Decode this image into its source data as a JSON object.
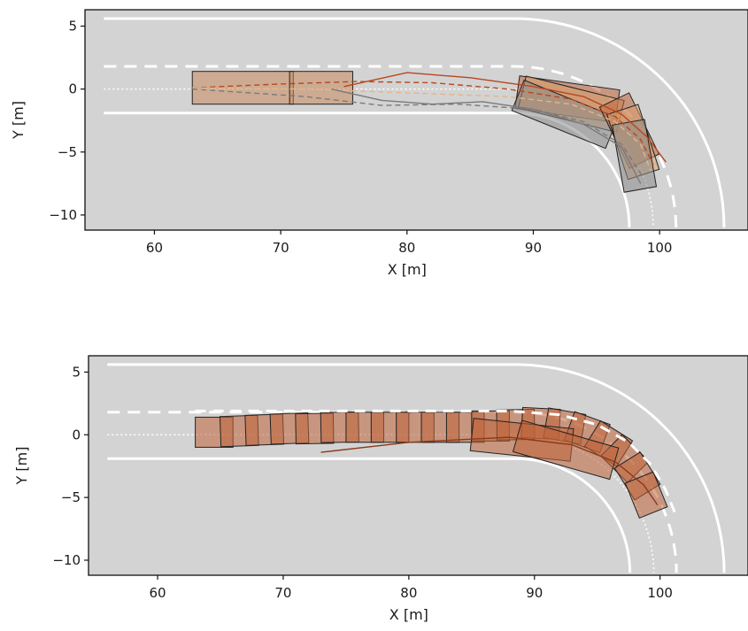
{
  "chart_data": [
    {
      "type": "scatter",
      "xlabel": "X [m]",
      "ylabel": "Y [m]",
      "xlim": [
        54.5,
        107
      ],
      "ylim": [
        -11.2,
        6.3
      ],
      "xticks": [
        60,
        70,
        80,
        90,
        100
      ],
      "yticks": [
        5,
        0,
        -5,
        -10
      ],
      "xtick_labels": [
        "60",
        "70",
        "80",
        "90",
        "100"
      ],
      "ytick_labels": [
        "5",
        "0",
        "−5",
        "−10"
      ],
      "background": "#d3d3d3",
      "grid": false,
      "road": {
        "straight_start_x": 56,
        "turn_start_x": 88.5,
        "turn_center": [
          88.5,
          -11
        ],
        "end_y": -11,
        "outer_edge_y": 5.6,
        "left_lane_dashed_y": 1.8,
        "centerline_dotted_y": 0.0,
        "inner_edge_y": -1.9,
        "colors": {
          "edge": "#ffffff",
          "dashed": "#ffffff",
          "dotted": "#ffffff"
        }
      },
      "vehicle_states": [
        {
          "x": 67,
          "y": 0.1,
          "heading_deg": 0,
          "length": 8,
          "width": 2.6,
          "color": "#c98a5c"
        },
        {
          "x": 73.2,
          "y": 0.1,
          "heading_deg": 0,
          "length": 5,
          "width": 2.6,
          "color": "#c98a5c"
        },
        {
          "x": 92.7,
          "y": -0.8,
          "heading_deg": -8,
          "length": 8,
          "width": 2.6,
          "color": "#c0653a"
        },
        {
          "x": 93.0,
          "y": -1.2,
          "heading_deg": -14,
          "length": 8,
          "width": 2.6,
          "color": "#d9a26e"
        },
        {
          "x": 92.5,
          "y": -2.0,
          "heading_deg": -22,
          "length": 8,
          "width": 2.6,
          "color": "#8a8a8a"
        },
        {
          "x": 97.6,
          "y": -3.3,
          "heading_deg": -64,
          "length": 5.4,
          "width": 2.6,
          "color": "#c0653a"
        },
        {
          "x": 97.9,
          "y": -4.2,
          "heading_deg": -72,
          "length": 5.4,
          "width": 2.6,
          "color": "#d9a26e"
        },
        {
          "x": 98.0,
          "y": -5.3,
          "heading_deg": -80,
          "length": 5.4,
          "width": 2.6,
          "color": "#8a8a8a"
        }
      ],
      "trajectories": [
        {
          "style": "dashed",
          "color": "#b8471e",
          "x": [
            63,
            70,
            76,
            82,
            88,
            93,
            96.5,
            98.5,
            99.5
          ],
          "y": [
            0.1,
            0.4,
            0.6,
            0.5,
            0.0,
            -0.8,
            -2.2,
            -4.0,
            -6.0
          ]
        },
        {
          "style": "solid",
          "color": "#b8471e",
          "x": [
            75,
            80,
            85,
            90,
            94,
            97,
            99,
            100.5
          ],
          "y": [
            0.2,
            1.3,
            0.9,
            0.2,
            -0.6,
            -2.0,
            -3.8,
            -5.8
          ]
        },
        {
          "style": "dashed",
          "color": "#e0b68a",
          "x": [
            63,
            72,
            80,
            88,
            93,
            96.5,
            98.5,
            99.3
          ],
          "y": [
            0.1,
            0.0,
            -0.3,
            -0.6,
            -1.2,
            -2.6,
            -4.4,
            -6.5
          ]
        },
        {
          "style": "dashed",
          "color": "#7a7a7a",
          "x": [
            63,
            72,
            78,
            84,
            90,
            94,
            97,
            98.7
          ],
          "y": [
            0.0,
            -0.6,
            -1.3,
            -1.2,
            -1.6,
            -2.6,
            -4.4,
            -7.0
          ]
        },
        {
          "style": "solid",
          "color": "#7a7a7a",
          "x": [
            74,
            78,
            82,
            86,
            90,
            94,
            97,
            98.5
          ],
          "y": [
            0.0,
            -0.9,
            -1.2,
            -1.0,
            -1.6,
            -2.8,
            -4.6,
            -7.5
          ]
        }
      ]
    },
    {
      "type": "scatter",
      "xlabel": "X [m]",
      "ylabel": "Y [m]",
      "xlim": [
        54.5,
        107
      ],
      "ylim": [
        -11.2,
        6.3
      ],
      "xticks": [
        60,
        70,
        80,
        90,
        100
      ],
      "yticks": [
        5,
        0,
        -5,
        -10
      ],
      "xtick_labels": [
        "60",
        "70",
        "80",
        "90",
        "100"
      ],
      "ytick_labels": [
        "5",
        "0",
        "−5",
        "−10"
      ],
      "background": "#d3d3d3",
      "grid": false,
      "road": {
        "straight_start_x": 56,
        "turn_start_x": 88.5,
        "turn_center": [
          88.5,
          -11
        ],
        "end_y": -11,
        "outer_edge_y": 5.6,
        "left_lane_dashed_y": 1.8,
        "centerline_dotted_y": 0.0,
        "inner_edge_y": -1.9,
        "colors": {
          "edge": "#ffffff",
          "dashed": "#ffffff",
          "dotted": "#ffffff"
        }
      },
      "vehicle_states": [
        {
          "x": 64.5,
          "y": 0.2,
          "heading_deg": 0,
          "length": 3,
          "width": 2.4,
          "color": "#c0653a"
        },
        {
          "x": 66.5,
          "y": 0.3,
          "heading_deg": 2,
          "length": 3,
          "width": 2.4,
          "color": "#c0653a"
        },
        {
          "x": 68.5,
          "y": 0.4,
          "heading_deg": 2,
          "length": 3,
          "width": 2.4,
          "color": "#c0653a"
        },
        {
          "x": 70.5,
          "y": 0.5,
          "heading_deg": 2,
          "length": 3,
          "width": 2.4,
          "color": "#c0653a"
        },
        {
          "x": 72.5,
          "y": 0.5,
          "heading_deg": 1,
          "length": 3,
          "width": 2.4,
          "color": "#c0653a"
        },
        {
          "x": 74.5,
          "y": 0.6,
          "heading_deg": 1,
          "length": 3,
          "width": 2.4,
          "color": "#c0653a"
        },
        {
          "x": 76.5,
          "y": 0.6,
          "heading_deg": 0,
          "length": 3,
          "width": 2.4,
          "color": "#c0653a"
        },
        {
          "x": 78.5,
          "y": 0.6,
          "heading_deg": 0,
          "length": 3,
          "width": 2.4,
          "color": "#c0653a"
        },
        {
          "x": 80.5,
          "y": 0.6,
          "heading_deg": 0,
          "length": 3,
          "width": 2.4,
          "color": "#c0653a"
        },
        {
          "x": 82.5,
          "y": 0.6,
          "heading_deg": 0,
          "length": 3,
          "width": 2.4,
          "color": "#c0653a"
        },
        {
          "x": 84.5,
          "y": 0.6,
          "heading_deg": 0,
          "length": 3,
          "width": 2.4,
          "color": "#c0653a"
        },
        {
          "x": 86.5,
          "y": 0.7,
          "heading_deg": 0,
          "length": 3,
          "width": 2.4,
          "color": "#c0653a"
        },
        {
          "x": 88.5,
          "y": 0.8,
          "heading_deg": 1,
          "length": 3,
          "width": 2.4,
          "color": "#c0653a"
        },
        {
          "x": 90.5,
          "y": 0.9,
          "heading_deg": -3,
          "length": 3,
          "width": 2.4,
          "color": "#c0653a"
        },
        {
          "x": 92.4,
          "y": 0.7,
          "heading_deg": -10,
          "length": 3,
          "width": 2.4,
          "color": "#c0653a"
        },
        {
          "x": 94.2,
          "y": 0.2,
          "heading_deg": -20,
          "length": 3,
          "width": 2.4,
          "color": "#c0653a"
        },
        {
          "x": 95.9,
          "y": -0.7,
          "heading_deg": -32,
          "length": 3,
          "width": 2.4,
          "color": "#c0653a"
        },
        {
          "x": 97.2,
          "y": -1.9,
          "heading_deg": -45,
          "length": 3,
          "width": 2.4,
          "color": "#c0653a"
        },
        {
          "x": 98.2,
          "y": -3.3,
          "heading_deg": -58,
          "length": 3,
          "width": 2.4,
          "color": "#c0653a"
        },
        {
          "x": 98.9,
          "y": -4.8,
          "heading_deg": -68,
          "length": 3,
          "width": 2.4,
          "color": "#c0653a"
        },
        {
          "x": 89.0,
          "y": -0.4,
          "heading_deg": -6,
          "length": 8,
          "width": 2.6,
          "color": "#c0653a"
        },
        {
          "x": 92.5,
          "y": -1.2,
          "heading_deg": -16,
          "length": 8,
          "width": 2.6,
          "color": "#c0653a"
        }
      ],
      "trajectories": [
        {
          "style": "dashed",
          "color": "#ffffff",
          "x": [
            63,
            72,
            80,
            88,
            92,
            95,
            97.5,
            99.2,
            100.4,
            101.3
          ],
          "y": [
            1.9,
            1.9,
            1.9,
            1.9,
            1.6,
            0.8,
            -0.6,
            -2.3,
            -4.3,
            -6.5
          ]
        },
        {
          "style": "solid",
          "color": "#8a3a18",
          "x": [
            73,
            80,
            88,
            93,
            96.5,
            98.7,
            99.8
          ],
          "y": [
            -1.4,
            -0.6,
            -0.2,
            -0.8,
            -2.2,
            -4.0,
            -5.6
          ]
        }
      ]
    }
  ]
}
